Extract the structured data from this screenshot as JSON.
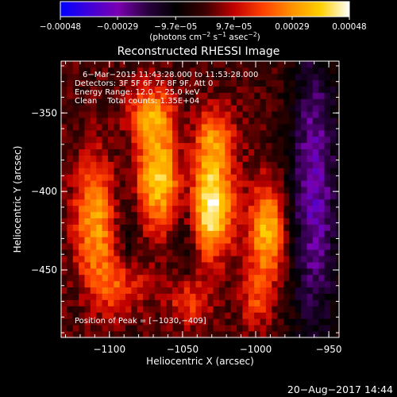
{
  "chart_data": {
    "type": "heatmap",
    "title": "Reconstructed RHESSI Image",
    "xlabel": "Heliocentric X (arcsec)",
    "ylabel": "Heliocentric Y (arcsec)",
    "xlim": [
      -1133,
      -943
    ],
    "ylim": [
      -493,
      -317
    ],
    "x_ticks": [
      {
        "value": -1100,
        "label": "−1100"
      },
      {
        "value": -1050,
        "label": "−1050"
      },
      {
        "value": -1000,
        "label": "−1000"
      },
      {
        "value": -950,
        "label": "−950"
      }
    ],
    "y_ticks": [
      {
        "value": -350,
        "label": "−350"
      },
      {
        "value": -400,
        "label": "−400"
      },
      {
        "value": -450,
        "label": "−450"
      }
    ],
    "colorbar": {
      "min": -0.00048,
      "max": 0.00048,
      "ticks": [
        {
          "value": -0.00048,
          "label": "−0.00048"
        },
        {
          "value": -0.00029,
          "label": "−0.00029"
        },
        {
          "value": -9.7e-05,
          "label": "−9.7e−05"
        },
        {
          "value": 9.7e-05,
          "label": "9.7e−05"
        },
        {
          "value": 0.00029,
          "label": "0.00029"
        },
        {
          "value": 0.00048,
          "label": "0.00048"
        }
      ],
      "label_parts": [
        "(photons cm",
        "−2",
        " s",
        "−1",
        " asec",
        "−2",
        ")"
      ],
      "stops": [
        "#0000ff",
        "#4000d8",
        "#7a00b0",
        "#2a0040",
        "#000000",
        "#3a0000",
        "#c00000",
        "#ff4000",
        "#ff9000",
        "#ffd000",
        "#ffffff"
      ]
    },
    "annotations": [
      "6−Mar−2015 11:43:28.000 to 11:53:28.000",
      "Detectors: 3F 5F 6F 7F 8F 9F, Att 0",
      "Energy Range: 12.0 − 25.0 keV",
      "Clean    Total counts: 1.35E+04"
    ],
    "peak_label": "Position of Peak = [−1030,−409]",
    "peak": {
      "x": -1030,
      "y": -409
    },
    "sources": [
      {
        "x": -1110,
        "y": -418,
        "amp": 0.00032,
        "sx": 10,
        "sy": 28
      },
      {
        "x": -1066,
        "y": -392,
        "amp": 0.00038,
        "sx": 12,
        "sy": 22
      },
      {
        "x": -1072,
        "y": -350,
        "amp": 0.00026,
        "sx": 12,
        "sy": 14
      },
      {
        "x": -1030,
        "y": -409,
        "amp": 0.00048,
        "sx": 10,
        "sy": 22
      },
      {
        "x": -1028,
        "y": -365,
        "amp": 0.00024,
        "sx": 10,
        "sy": 14
      },
      {
        "x": -992,
        "y": -425,
        "amp": 0.00036,
        "sx": 9,
        "sy": 22
      },
      {
        "x": -1092,
        "y": -460,
        "amp": 0.00022,
        "sx": 12,
        "sy": 14
      },
      {
        "x": -1046,
        "y": -470,
        "amp": 0.0002,
        "sx": 10,
        "sy": 12
      },
      {
        "x": -1000,
        "y": -470,
        "amp": 0.00016,
        "sx": 8,
        "sy": 12
      }
    ],
    "negative_regions": [
      {
        "x": -960,
        "y": -400,
        "amp": -0.0003,
        "sx": 12,
        "sy": 70
      },
      {
        "x": -1048,
        "y": -410,
        "amp": -0.00012,
        "sx": 6,
        "sy": 40
      },
      {
        "x": -1088,
        "y": -420,
        "amp": -0.0001,
        "sx": 6,
        "sy": 40
      }
    ]
  },
  "footer": {
    "timestamp": "20−Aug−2017 14:44"
  }
}
